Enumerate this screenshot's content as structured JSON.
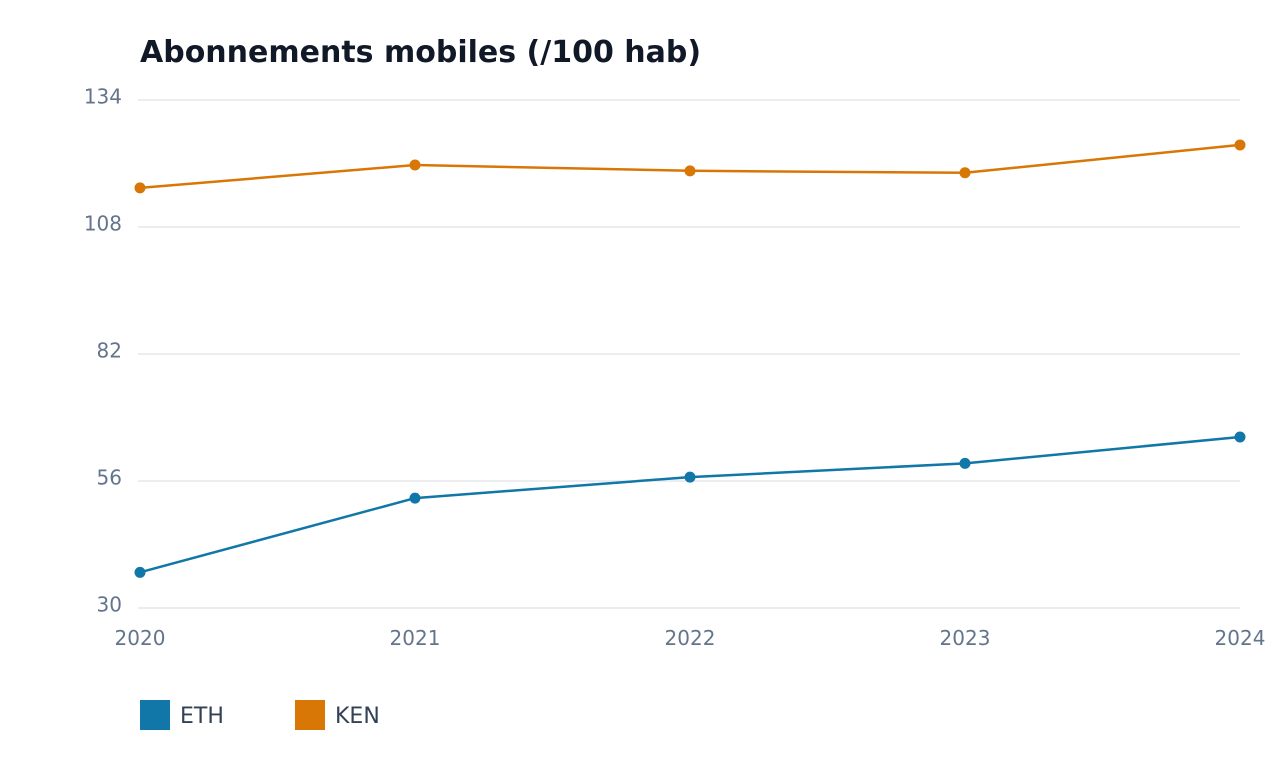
{
  "chart_data": {
    "type": "line",
    "title": "Abonnements mobiles (/100 hab)",
    "xlabel": "",
    "ylabel": "",
    "categories": [
      "2020",
      "2021",
      "2022",
      "2023",
      "2024"
    ],
    "y_ticks": [
      "30",
      "56",
      "82",
      "108",
      "134"
    ],
    "ylim": [
      30,
      134
    ],
    "grid": true,
    "legend_position": "bottom-left",
    "series": [
      {
        "name": "ETH",
        "color": "#1077a8",
        "values": [
          37.3,
          52.5,
          56.8,
          59.6,
          65.0
        ]
      },
      {
        "name": "KEN",
        "color": "#d97706",
        "values": [
          116.0,
          120.7,
          119.5,
          119.1,
          124.8
        ]
      }
    ]
  }
}
